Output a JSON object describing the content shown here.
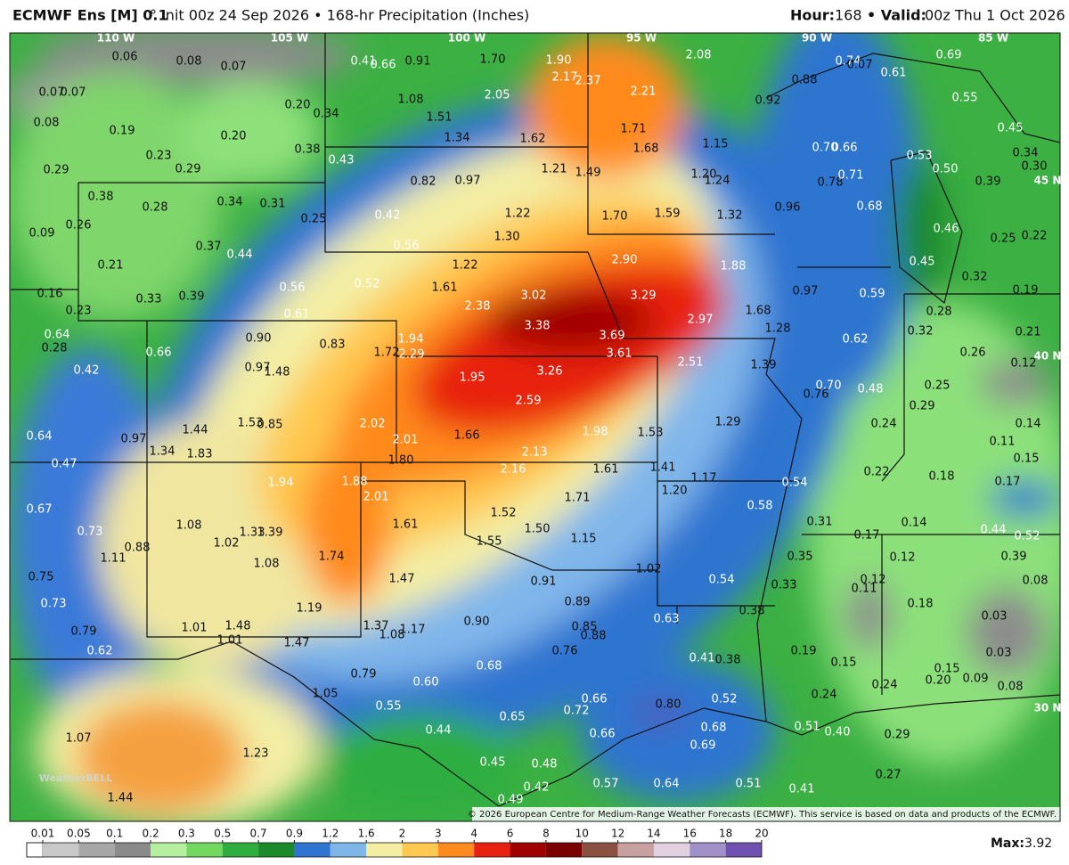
{
  "header": {
    "model": "ECMWF Ens [M] 0.1",
    "init": "° Init 00z 24 Sep 2026 • 168-hr Precipitation (Inches)",
    "hour_label": "Hour:",
    "hour": "168",
    "valid_label": "• Valid:",
    "valid": "00z Thu 1 Oct 2026"
  },
  "map": {
    "longitude_labels": [
      "110 W",
      "105 W",
      "100 W",
      "95 W",
      "90 W",
      "85 W"
    ],
    "latitude_labels": [
      "45 N",
      "40 N",
      "30 N"
    ],
    "point_values": [
      "0.06",
      "0.08",
      "0.07",
      "0.41",
      "0.66",
      "0.91",
      "1.70",
      "1.90",
      "2.08",
      "0.74",
      "0.07",
      "0.61",
      "0.69",
      "0.07",
      "0.07",
      "2.17",
      "2.37",
      "2.21",
      "0.88",
      "2.05",
      "1.08",
      "0.92",
      "0.55",
      "0.08",
      "0.19",
      "0.20",
      "0.34",
      "1.51",
      "1.34",
      "1.62",
      "1.71",
      "0.45",
      "0.20",
      "0.38",
      "1.68",
      "1.15",
      "0.70",
      "0.66",
      "0.53",
      "0.34",
      "0.23",
      "0.43",
      "1.21",
      "1.49",
      "1.20",
      "1.24",
      "0.78",
      "0.71",
      "0.50",
      "0.30",
      "0.29",
      "0.29",
      "0.82",
      "0.97",
      "0.39",
      "0.38",
      "0.28",
      "0.34",
      "0.31",
      "1.22",
      "1.70",
      "1.59",
      "1.32",
      "0.96",
      "0.68",
      "0.25",
      "0.42",
      "0.46",
      "0.25",
      "0.22",
      "0.09",
      "0.26",
      "1.30",
      "0.56",
      "0.37",
      "0.44",
      "2.90",
      "1.88",
      "0.45",
      "0.21",
      "1.22",
      "0.52",
      "0.56",
      "1.61",
      "0.97",
      "0.59",
      "0.32",
      "0.19",
      "0.16",
      "0.33",
      "0.39",
      "3.02",
      "3.29",
      "2.38",
      "0.23",
      "0.61",
      "1.68",
      "2.97",
      "0.28",
      "0.64",
      "0.90",
      "0.83",
      "1.94",
      "3.38",
      "3.69",
      "1.28",
      "0.62",
      "0.32",
      "0.21",
      "0.28",
      "0.66",
      "1.72",
      "2.29",
      "3.61",
      "0.26",
      "0.12",
      "0.42",
      "0.97",
      "1.48",
      "1.95",
      "3.26",
      "2.51",
      "1.39",
      "0.70",
      "0.48",
      "0.25",
      "0.76",
      "2.59",
      "1.29",
      "0.29",
      "1.44",
      "1.53",
      "0.85",
      "2.02",
      "1.98",
      "1.53",
      "0.24",
      "0.14",
      "0.64",
      "0.97",
      "2.01",
      "1.66",
      "0.11",
      "1.34",
      "1.83",
      "2.13",
      "1.80",
      "0.15",
      "0.47",
      "2.16",
      "1.61",
      "1.41",
      "0.22",
      "0.18",
      "0.17",
      "1.94",
      "1.88",
      "1.17",
      "0.54",
      "2.01",
      "1.71",
      "1.20",
      "0.67",
      "1.52",
      "0.58",
      "1.08",
      "1.61",
      "1.50",
      "0.31",
      "0.14",
      "0.73",
      "1.33",
      "1.39",
      "0.17",
      "0.44",
      "0.52",
      "1.02",
      "0.88",
      "1.55",
      "1.15",
      "1.11",
      "1.74",
      "0.35",
      "0.12",
      "0.39",
      "1.08",
      "1.02",
      "0.75",
      "1.47",
      "0.91",
      "0.54",
      "0.33",
      "0.12",
      "0.11",
      "0.08",
      "0.73",
      "1.19",
      "0.89",
      "0.38",
      "0.18",
      "0.90",
      "0.85",
      "0.63",
      "0.03",
      "1.01",
      "1.48",
      "1.37",
      "1.08",
      "1.17",
      "0.88",
      "0.79",
      "1.01",
      "1.47",
      "0.19",
      "0.03",
      "0.62",
      "0.76",
      "0.41",
      "0.38",
      "0.15",
      "1.05",
      "0.79",
      "0.68",
      "0.60",
      "0.15",
      "0.09",
      "0.20",
      "0.24",
      "0.08",
      "0.24",
      "0.66",
      "0.52",
      "0.55",
      "0.65",
      "0.72",
      "0.80",
      "0.68",
      "0.51",
      "0.40",
      "0.29",
      "1.07",
      "0.44",
      "0.66",
      "0.69",
      "1.23",
      "0.45",
      "0.48",
      "0.27",
      "0.57",
      "0.64",
      "0.51",
      "0.41",
      "0.42",
      "1.44",
      "0.49"
    ],
    "watermark": "WeatherBELL",
    "credit": "© 2026 European Centre for Medium-Range Weather Forecasts (ECMWF). This service is based on data and products of the ECMWF."
  },
  "legend": {
    "levels": [
      0.01,
      0.05,
      0.1,
      0.2,
      0.3,
      0.5,
      0.7,
      0.9,
      1.2,
      1.6,
      2,
      3,
      4,
      6,
      8,
      10,
      12,
      14,
      16,
      18,
      20
    ],
    "colors": [
      "#c8c8c8",
      "#a6a6a6",
      "#8a8a8a",
      "#b4f0a0",
      "#72d860",
      "#2fae3f",
      "#1a8a2a",
      "#2f74d0",
      "#7fb6ea",
      "#f3eea4",
      "#ffc850",
      "#ff8a1e",
      "#e82010",
      "#a00000",
      "#7a0000",
      "#8a5040",
      "#c8a0a0",
      "#e0d0e0",
      "#a090c8",
      "#7050b0",
      "#c030d0"
    ],
    "max_label": "Max:",
    "max": "3.92"
  }
}
